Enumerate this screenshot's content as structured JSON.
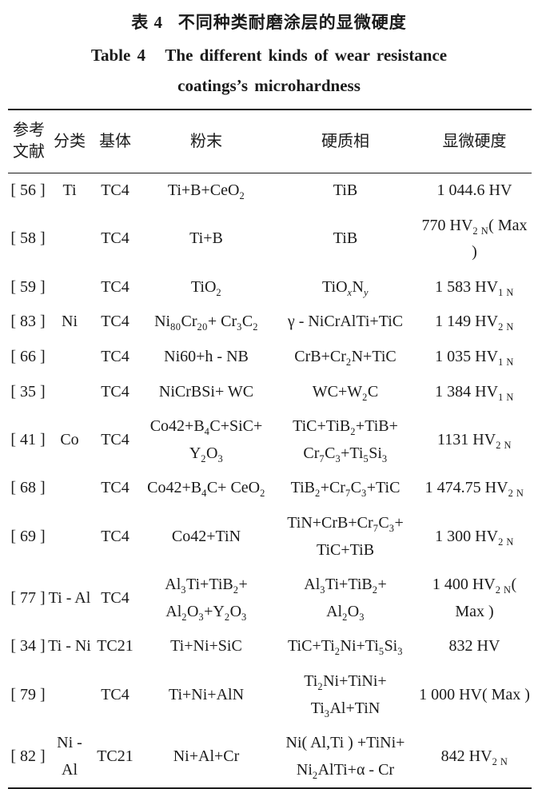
{
  "caption": {
    "zh": "表 4   不同种类耐磨涂层的显微硬度",
    "en_line1": "Table 4   The different kinds of wear resistance",
    "en_line2": "coatings’s microhardness"
  },
  "table": {
    "columns": [
      {
        "key": "ref",
        "label": "参考文献"
      },
      {
        "key": "category",
        "label": "分类"
      },
      {
        "key": "substrate",
        "label": "基体"
      },
      {
        "key": "powder",
        "label": "粉末"
      },
      {
        "key": "phase",
        "label": "硬质相"
      },
      {
        "key": "hardness",
        "label": "显微硬度"
      }
    ],
    "rows": [
      {
        "ref": "[ 56 ]",
        "category": "Ti",
        "substrate": "TC4",
        "powder": "Ti+B+CeO_{2}",
        "phase": "TiB",
        "hardness": "1 044.6 HV"
      },
      {
        "ref": "[ 58 ]",
        "category": "",
        "substrate": "TC4",
        "powder": "Ti+B",
        "phase": "TiB",
        "hardness": "770 HV_{2 N}( Max )"
      },
      {
        "ref": "[ 59 ]",
        "category": "",
        "substrate": "TC4",
        "powder": "TiO_{2}",
        "phase": "TiO_{*x*}N_{*y*}",
        "hardness": "1 583 HV_{1 N}"
      },
      {
        "ref": "[ 83 ]",
        "category": "Ni",
        "substrate": "TC4",
        "powder": "Ni_{80}Cr_{20}+ Cr_{3}C_{2}",
        "phase": "γ - NiCrAlTi+TiC",
        "hardness": "1 149 HV_{2 N}"
      },
      {
        "ref": "[ 66 ]",
        "category": "",
        "substrate": "TC4",
        "powder": "Ni60+h - NB",
        "phase": "CrB+Cr_{2}N+TiC",
        "hardness": "1 035 HV_{1 N}"
      },
      {
        "ref": "[ 35 ]",
        "category": "",
        "substrate": "TC4",
        "powder": "NiCrBSi+ WC",
        "phase": "WC+W_{2}C",
        "hardness": "1 384 HV_{1 N}"
      },
      {
        "ref": "[ 41 ]",
        "category": "Co",
        "substrate": "TC4",
        "powder": "Co42+B_{4}C+SiC+\nY_{2}O_{3}",
        "phase": "TiC+TiB_{2}+TiB+\nCr_{7}C_{3}+Ti_{5}Si_{3}",
        "hardness": "1131 HV_{2 N}"
      },
      {
        "ref": "[ 68 ]",
        "category": "",
        "substrate": "TC4",
        "powder": "Co42+B_{4}C+ CeO_{2}",
        "phase": "TiB_{2}+Cr_{7}C_{3}+TiC",
        "hardness": "1 474.75 HV_{2 N}"
      },
      {
        "ref": "[ 69 ]",
        "category": "",
        "substrate": "TC4",
        "powder": "Co42+TiN",
        "phase": "TiN+CrB+Cr_{7}C_{3}+\nTiC+TiB",
        "hardness": "1 300 HV_{2 N}"
      },
      {
        "ref": "[ 77 ]",
        "category": "Ti - Al",
        "substrate": "TC4",
        "powder": "Al_{3}Ti+TiB_{2}+\nAl_{2}O_{3}+Y_{2}O_{3}",
        "phase": "Al_{3}Ti+TiB_{2}+\nAl_{2}O_{3}",
        "hardness": "1 400 HV_{2 N}( Max )"
      },
      {
        "ref": "[ 34 ]",
        "category": "Ti - Ni",
        "substrate": "TC21",
        "powder": "Ti+Ni+SiC",
        "phase": "TiC+Ti_{2}Ni+Ti_{5}Si_{3}",
        "hardness": "832 HV"
      },
      {
        "ref": "[ 79 ]",
        "category": "",
        "substrate": "TC4",
        "powder": "Ti+Ni+AlN",
        "phase": "Ti_{2}Ni+TiNi+\nTi_{3}Al+TiN",
        "hardness": "1 000 HV( Max )"
      },
      {
        "ref": "[ 82 ]",
        "category": "Ni - Al",
        "substrate": "TC21",
        "powder": "Ni+Al+Cr",
        "phase": "Ni( Al,Ti ) +TiNi+\nNi_{2}AlTi+α - Cr",
        "hardness": "842 HV_{2 N}"
      }
    ]
  }
}
